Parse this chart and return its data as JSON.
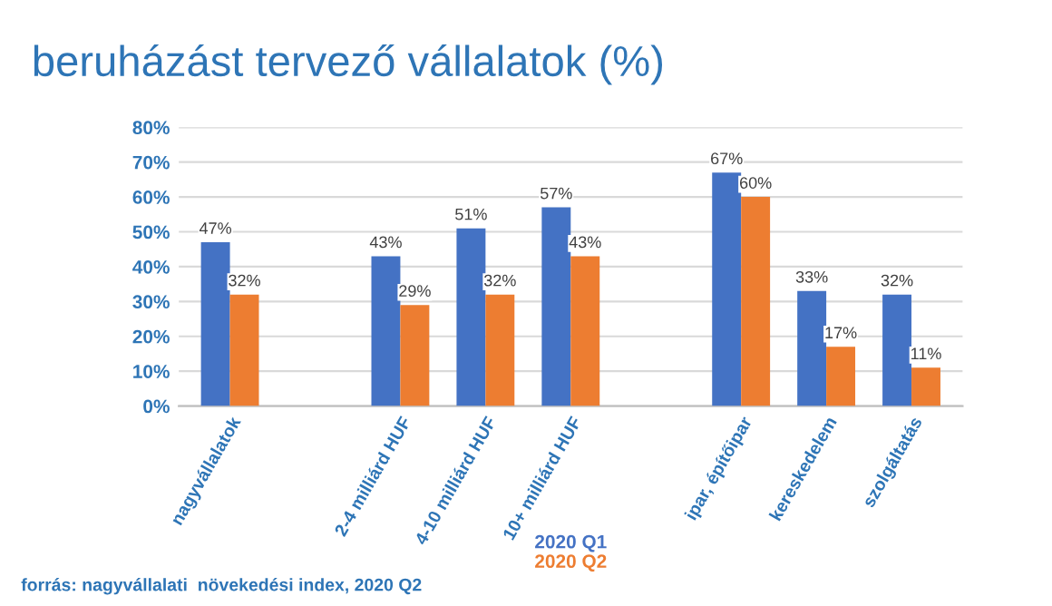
{
  "chart_data": {
    "type": "bar",
    "title": "beruházást tervező vállalatok (%)",
    "categories": [
      "nagyvállalatok",
      null,
      "2-4 milliárd HUF",
      "4-10 milliárd HUF",
      "10+ milliárd HUF",
      null,
      "ipar, építőipar",
      "kereskedelem",
      "szolgáltatás"
    ],
    "series": [
      {
        "name": "2020 Q1",
        "color": "#4472c4",
        "values": [
          47,
          null,
          43,
          51,
          57,
          null,
          67,
          33,
          32
        ],
        "value_labels": [
          "47%",
          null,
          "43%",
          "51%",
          "57%",
          null,
          "67%",
          "33%",
          "32%"
        ]
      },
      {
        "name": "2020 Q2",
        "color": "#ed7d31",
        "values": [
          32,
          null,
          29,
          32,
          43,
          null,
          60,
          17,
          11
        ],
        "value_labels": [
          "32%",
          null,
          "29%",
          "32%",
          "43%",
          null,
          "60%",
          "17%",
          "11%"
        ]
      }
    ],
    "ylim": [
      0,
      80
    ],
    "yticks": [
      {
        "value": 0,
        "label": "0%"
      },
      {
        "value": 10,
        "label": "10%"
      },
      {
        "value": 20,
        "label": "20%"
      },
      {
        "value": 30,
        "label": "30%"
      },
      {
        "value": 40,
        "label": "40%"
      },
      {
        "value": 50,
        "label": "50%"
      },
      {
        "value": 60,
        "label": "60%"
      },
      {
        "value": 70,
        "label": "70%"
      },
      {
        "value": 80,
        "label": "80%"
      }
    ],
    "grid": "y",
    "legend": "bottom",
    "annotations": [
      "forrás: nagyvállalati  növekedési index, 2020 Q2"
    ]
  }
}
